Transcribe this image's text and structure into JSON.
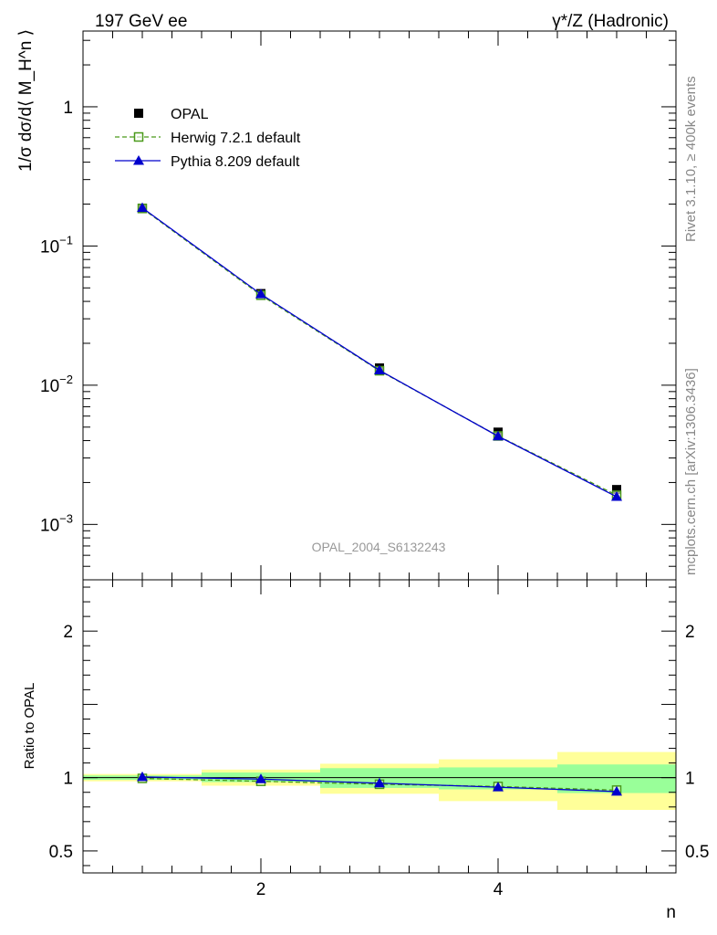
{
  "header": {
    "left": "197 GeV ee",
    "right": "γ*/Z (Hadronic)"
  },
  "side": {
    "rivet": "Rivet 3.1.10, ≥ 400k events",
    "mcplots": "mcplots.cern.ch [arXiv:1306.3436]"
  },
  "analysis_label": "OPAL_2004_S6132243",
  "chart_data": [
    {
      "type": "scatter",
      "panel": "main",
      "ylabel": "1/σ dσ/d⟨ M_H^n ⟩",
      "yscale": "log",
      "ylim": [
        0.0004,
        3.5
      ],
      "xlim": [
        0.5,
        5.5
      ],
      "yticks": [
        {
          "value": 0.001,
          "base": "10",
          "exp": "−3"
        },
        {
          "value": 0.01,
          "base": "10",
          "exp": "−2"
        },
        {
          "value": 0.1,
          "base": "10",
          "exp": "−1"
        },
        {
          "value": 1,
          "base": "1",
          "exp": ""
        }
      ],
      "legend_position": "top-left",
      "x": [
        1,
        2,
        3,
        4,
        5
      ],
      "series": [
        {
          "name": "OPAL",
          "values": [
            0.187,
            0.0455,
            0.0133,
            0.0046,
            0.00178
          ],
          "marker": "filled-square",
          "color": "#000000"
        },
        {
          "name": "Herwig 7.2.1 default",
          "values": [
            0.186,
            0.0443,
            0.0127,
            0.00432,
            0.00162
          ],
          "marker": "open-square",
          "line": "dashed",
          "color": "#4a9a1a"
        },
        {
          "name": "Pythia 8.209 default",
          "values": [
            0.188,
            0.0451,
            0.0128,
            0.0043,
            0.00158
          ],
          "marker": "triangle",
          "line": "solid",
          "color": "#0000cc"
        }
      ]
    },
    {
      "type": "scatter",
      "panel": "ratio",
      "ylabel": "Ratio to OPAL",
      "xlabel": "n",
      "ylim": [
        0.35,
        2.35
      ],
      "xlim": [
        0.5,
        5.5
      ],
      "yticks": [
        {
          "value": 0.5,
          "label": "0.5"
        },
        {
          "value": 1,
          "label": "1"
        },
        {
          "value": 2,
          "label": "2"
        }
      ],
      "xticks": [
        {
          "value": 2,
          "label": "2"
        },
        {
          "value": 4,
          "label": "4"
        }
      ],
      "bands": {
        "x_edges": [
          0.5,
          1.5,
          2.5,
          3.5,
          4.5,
          5.5
        ],
        "stat": {
          "color": "#99ff99",
          "low": [
            0.985,
            0.97,
            0.93,
            0.92,
            0.895
          ],
          "high": [
            1.015,
            1.035,
            1.065,
            1.07,
            1.09
          ]
        },
        "total": {
          "color": "#ffff99",
          "low": [
            0.975,
            0.945,
            0.89,
            0.84,
            0.78
          ],
          "high": [
            1.025,
            1.055,
            1.095,
            1.125,
            1.175
          ]
        }
      },
      "series": [
        {
          "name": "Herwig 7.2.1 default",
          "values": [
            0.995,
            0.975,
            0.955,
            0.94,
            0.915
          ],
          "marker": "open-square",
          "line": "dashed",
          "color": "#4a9a1a"
        },
        {
          "name": "Pythia 8.209 default",
          "values": [
            1.005,
            0.99,
            0.962,
            0.935,
            0.905
          ],
          "marker": "triangle",
          "line": "solid",
          "color": "#0000cc"
        }
      ]
    }
  ]
}
